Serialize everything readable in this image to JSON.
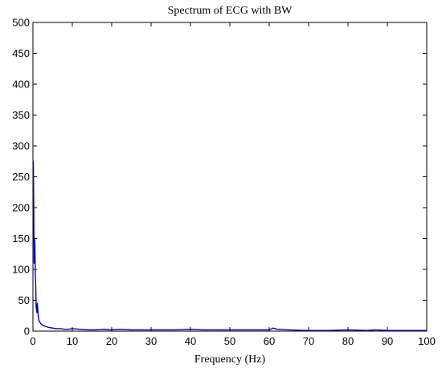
{
  "chart_data": {
    "type": "line",
    "title": "Spectrum of ECG with BW",
    "xlabel": "Frequency (Hz)",
    "ylabel": "",
    "xlim": [
      0,
      100
    ],
    "ylim": [
      0,
      500
    ],
    "xticks": [
      0,
      10,
      20,
      30,
      40,
      50,
      60,
      70,
      80,
      90,
      100
    ],
    "yticks": [
      0,
      50,
      100,
      150,
      200,
      250,
      300,
      350,
      400,
      450,
      500
    ],
    "grid": false,
    "series": [
      {
        "color": "#0000cc",
        "x": [
          0,
          0.1,
          0.2,
          0.3,
          0.4,
          0.5,
          0.6,
          0.7,
          0.8,
          0.9,
          1.0,
          1.1,
          1.2,
          1.3,
          1.4,
          1.5,
          1.7,
          2.0,
          2.3,
          2.6,
          3.0,
          3.5,
          4.0,
          5.0,
          6.0,
          7.0,
          8.0,
          9.0,
          10.0,
          12.0,
          14.0,
          16.0,
          18.0,
          20.0,
          22.0,
          25.0,
          28.0,
          30.0,
          33.0,
          36.0,
          40.0,
          43.0,
          46.0,
          50.0,
          53.0,
          56.0,
          60.0,
          61.0,
          62.0,
          65.0,
          70.0,
          75.0,
          80.0,
          85.0,
          87.0,
          90.0,
          95.0,
          100.0
        ],
        "values": [
          270,
          275,
          200,
          110,
          150,
          140,
          90,
          75,
          40,
          35,
          30,
          45,
          38,
          28,
          22,
          18,
          15,
          12,
          10,
          9,
          8,
          7,
          6,
          5,
          4,
          4,
          3,
          3,
          4,
          3,
          2,
          2,
          3,
          2,
          3,
          2,
          2,
          2,
          2,
          2,
          3,
          2,
          2,
          2,
          2,
          2,
          2,
          5,
          3,
          2,
          1,
          1,
          2,
          1,
          2,
          1,
          1,
          1
        ]
      }
    ]
  }
}
